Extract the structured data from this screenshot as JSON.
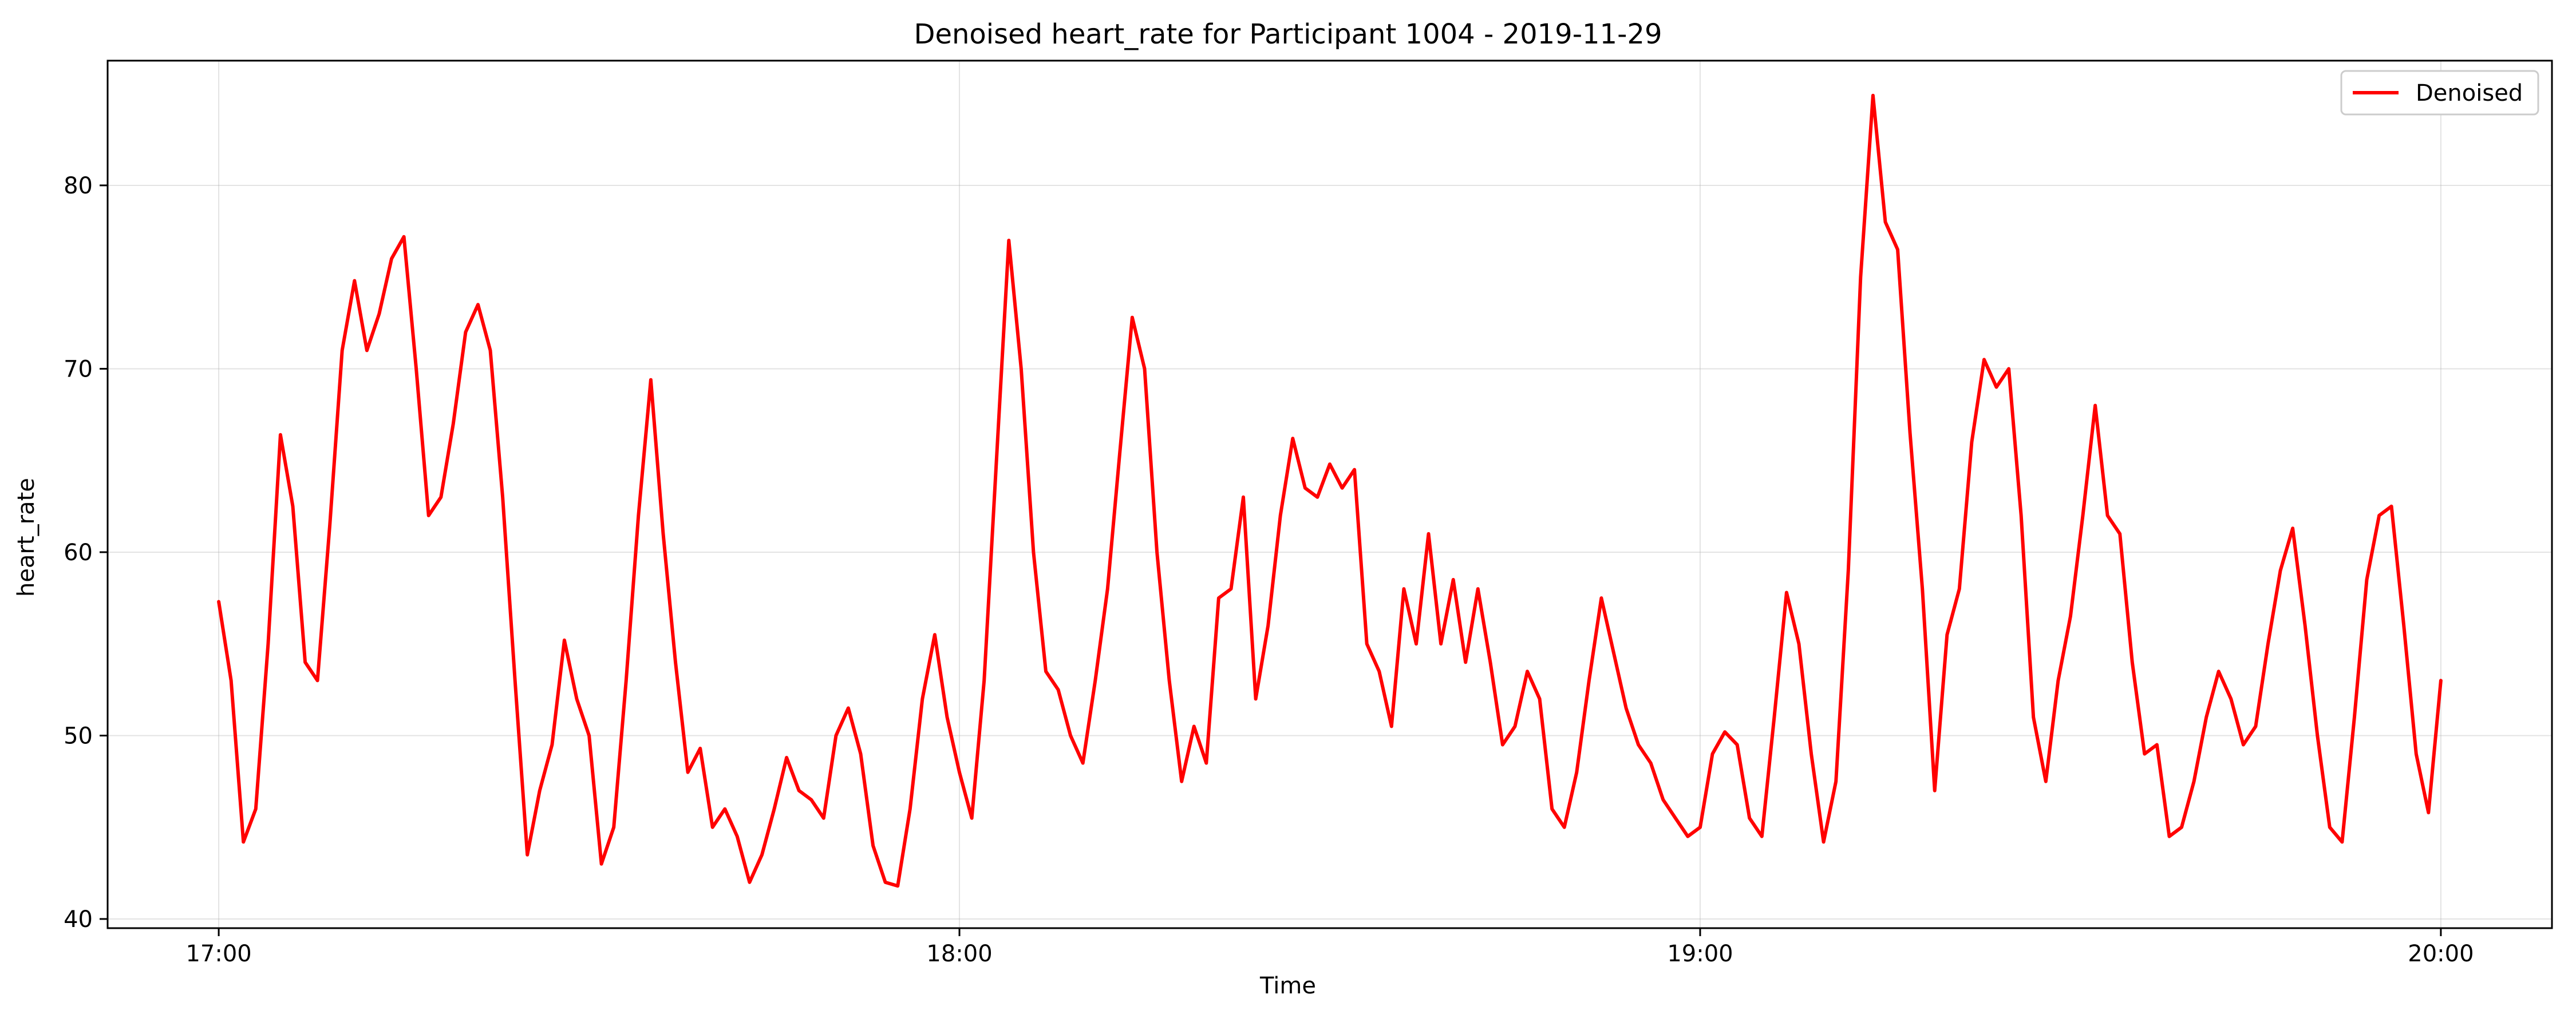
{
  "chart_data": {
    "type": "line",
    "title": "Denoised heart_rate for Participant 1004 - 2019-11-29",
    "xlabel": "Time",
    "ylabel": "heart_rate",
    "x_ticks": [
      "17:00",
      "18:00",
      "19:00",
      "20:00"
    ],
    "y_ticks": [
      40,
      50,
      60,
      70,
      80
    ],
    "xlim": [
      "16:51",
      "20:09"
    ],
    "ylim": [
      39.5,
      86.8
    ],
    "grid": true,
    "legend_position": "top-right",
    "series": [
      {
        "name": "Denoised",
        "color": "#ff0000",
        "points": [
          [
            "17:00",
            57.3
          ],
          [
            "17:01",
            53.0
          ],
          [
            "17:02",
            44.2
          ],
          [
            "17:03",
            46.0
          ],
          [
            "17:04",
            55.0
          ],
          [
            "17:05",
            66.4
          ],
          [
            "17:06",
            62.5
          ],
          [
            "17:07",
            54.0
          ],
          [
            "17:08",
            53.0
          ],
          [
            "17:09",
            61.5
          ],
          [
            "17:10",
            71.0
          ],
          [
            "17:11",
            74.8
          ],
          [
            "17:12",
            71.0
          ],
          [
            "17:13",
            73.0
          ],
          [
            "17:14",
            76.0
          ],
          [
            "17:15",
            77.2
          ],
          [
            "17:16",
            70.0
          ],
          [
            "17:17",
            62.0
          ],
          [
            "17:18",
            63.0
          ],
          [
            "17:19",
            67.0
          ],
          [
            "17:20",
            72.0
          ],
          [
            "17:21",
            73.5
          ],
          [
            "17:22",
            71.0
          ],
          [
            "17:23",
            63.0
          ],
          [
            "17:24",
            53.0
          ],
          [
            "17:25",
            43.5
          ],
          [
            "17:26",
            47.0
          ],
          [
            "17:27",
            49.5
          ],
          [
            "17:28",
            55.2
          ],
          [
            "17:29",
            52.0
          ],
          [
            "17:30",
            50.0
          ],
          [
            "17:31",
            43.0
          ],
          [
            "17:32",
            45.0
          ],
          [
            "17:33",
            53.0
          ],
          [
            "17:34",
            62.0
          ],
          [
            "17:35",
            69.4
          ],
          [
            "17:36",
            61.0
          ],
          [
            "17:37",
            54.0
          ],
          [
            "17:38",
            48.0
          ],
          [
            "17:39",
            49.3
          ],
          [
            "17:40",
            45.0
          ],
          [
            "17:41",
            46.0
          ],
          [
            "17:42",
            44.5
          ],
          [
            "17:43",
            42.0
          ],
          [
            "17:44",
            43.5
          ],
          [
            "17:45",
            46.0
          ],
          [
            "17:46",
            48.8
          ],
          [
            "17:47",
            47.0
          ],
          [
            "17:48",
            46.5
          ],
          [
            "17:49",
            45.5
          ],
          [
            "17:50",
            50.0
          ],
          [
            "17:51",
            51.5
          ],
          [
            "17:52",
            49.0
          ],
          [
            "17:53",
            44.0
          ],
          [
            "17:54",
            42.0
          ],
          [
            "17:55",
            41.8
          ],
          [
            "17:56",
            46.0
          ],
          [
            "17:57",
            52.0
          ],
          [
            "17:58",
            55.5
          ],
          [
            "17:59",
            51.0
          ],
          [
            "18:00",
            48.0
          ],
          [
            "18:01",
            45.5
          ],
          [
            "18:02",
            53.0
          ],
          [
            "18:03",
            65.0
          ],
          [
            "18:04",
            77.0
          ],
          [
            "18:05",
            70.0
          ],
          [
            "18:06",
            60.0
          ],
          [
            "18:07",
            53.5
          ],
          [
            "18:08",
            52.5
          ],
          [
            "18:09",
            50.0
          ],
          [
            "18:10",
            48.5
          ],
          [
            "18:11",
            53.0
          ],
          [
            "18:12",
            58.0
          ],
          [
            "18:13",
            65.5
          ],
          [
            "18:14",
            72.8
          ],
          [
            "18:15",
            70.0
          ],
          [
            "18:16",
            60.0
          ],
          [
            "18:17",
            53.0
          ],
          [
            "18:18",
            47.5
          ],
          [
            "18:19",
            50.5
          ],
          [
            "18:20",
            48.5
          ],
          [
            "18:21",
            57.5
          ],
          [
            "18:22",
            58.0
          ],
          [
            "18:23",
            63.0
          ],
          [
            "18:24",
            52.0
          ],
          [
            "18:25",
            56.0
          ],
          [
            "18:26",
            62.0
          ],
          [
            "18:27",
            66.2
          ],
          [
            "18:28",
            63.5
          ],
          [
            "18:29",
            63.0
          ],
          [
            "18:30",
            64.8
          ],
          [
            "18:31",
            63.5
          ],
          [
            "18:32",
            64.5
          ],
          [
            "18:33",
            55.0
          ],
          [
            "18:34",
            53.5
          ],
          [
            "18:35",
            50.5
          ],
          [
            "18:36",
            58.0
          ],
          [
            "18:37",
            55.0
          ],
          [
            "18:38",
            61.0
          ],
          [
            "18:39",
            55.0
          ],
          [
            "18:40",
            58.5
          ],
          [
            "18:41",
            54.0
          ],
          [
            "18:42",
            58.0
          ],
          [
            "18:43",
            54.0
          ],
          [
            "18:44",
            49.5
          ],
          [
            "18:45",
            50.5
          ],
          [
            "18:46",
            53.5
          ],
          [
            "18:47",
            52.0
          ],
          [
            "18:48",
            46.0
          ],
          [
            "18:49",
            45.0
          ],
          [
            "18:50",
            48.0
          ],
          [
            "18:51",
            53.0
          ],
          [
            "18:52",
            57.5
          ],
          [
            "18:53",
            54.5
          ],
          [
            "18:54",
            51.5
          ],
          [
            "18:55",
            49.5
          ],
          [
            "18:56",
            48.5
          ],
          [
            "18:57",
            46.5
          ],
          [
            "18:58",
            45.5
          ],
          [
            "18:59",
            44.5
          ],
          [
            "19:00",
            45.0
          ],
          [
            "19:01",
            49.0
          ],
          [
            "19:02",
            50.2
          ],
          [
            "19:03",
            49.5
          ],
          [
            "19:04",
            45.5
          ],
          [
            "19:05",
            44.5
          ],
          [
            "19:06",
            51.0
          ],
          [
            "19:07",
            57.8
          ],
          [
            "19:08",
            55.0
          ],
          [
            "19:09",
            49.0
          ],
          [
            "19:10",
            44.2
          ],
          [
            "19:11",
            47.5
          ],
          [
            "19:12",
            59.0
          ],
          [
            "19:13",
            75.0
          ],
          [
            "19:14",
            84.9
          ],
          [
            "19:15",
            78.0
          ],
          [
            "19:16",
            76.5
          ],
          [
            "19:17",
            66.5
          ],
          [
            "19:18",
            58.0
          ],
          [
            "19:19",
            47.0
          ],
          [
            "19:20",
            55.5
          ],
          [
            "19:21",
            58.0
          ],
          [
            "19:22",
            66.0
          ],
          [
            "19:23",
            70.5
          ],
          [
            "19:24",
            69.0
          ],
          [
            "19:25",
            70.0
          ],
          [
            "19:26",
            62.0
          ],
          [
            "19:27",
            51.0
          ],
          [
            "19:28",
            47.5
          ],
          [
            "19:29",
            53.0
          ],
          [
            "19:30",
            56.5
          ],
          [
            "19:31",
            62.0
          ],
          [
            "19:32",
            68.0
          ],
          [
            "19:33",
            62.0
          ],
          [
            "19:34",
            61.0
          ],
          [
            "19:35",
            54.0
          ],
          [
            "19:36",
            49.0
          ],
          [
            "19:37",
            49.5
          ],
          [
            "19:38",
            44.5
          ],
          [
            "19:39",
            45.0
          ],
          [
            "19:40",
            47.5
          ],
          [
            "19:41",
            51.0
          ],
          [
            "19:42",
            53.5
          ],
          [
            "19:43",
            52.0
          ],
          [
            "19:44",
            49.5
          ],
          [
            "19:45",
            50.5
          ],
          [
            "19:46",
            55.0
          ],
          [
            "19:47",
            59.0
          ],
          [
            "19:48",
            61.3
          ],
          [
            "19:49",
            56.0
          ],
          [
            "19:50",
            50.0
          ],
          [
            "19:51",
            45.0
          ],
          [
            "19:52",
            44.2
          ],
          [
            "19:53",
            51.0
          ],
          [
            "19:54",
            58.5
          ],
          [
            "19:55",
            62.0
          ],
          [
            "19:56",
            62.5
          ],
          [
            "19:57",
            56.0
          ],
          [
            "19:58",
            49.0
          ],
          [
            "19:59",
            45.8
          ],
          [
            "20:00",
            53.0
          ]
        ]
      }
    ]
  }
}
